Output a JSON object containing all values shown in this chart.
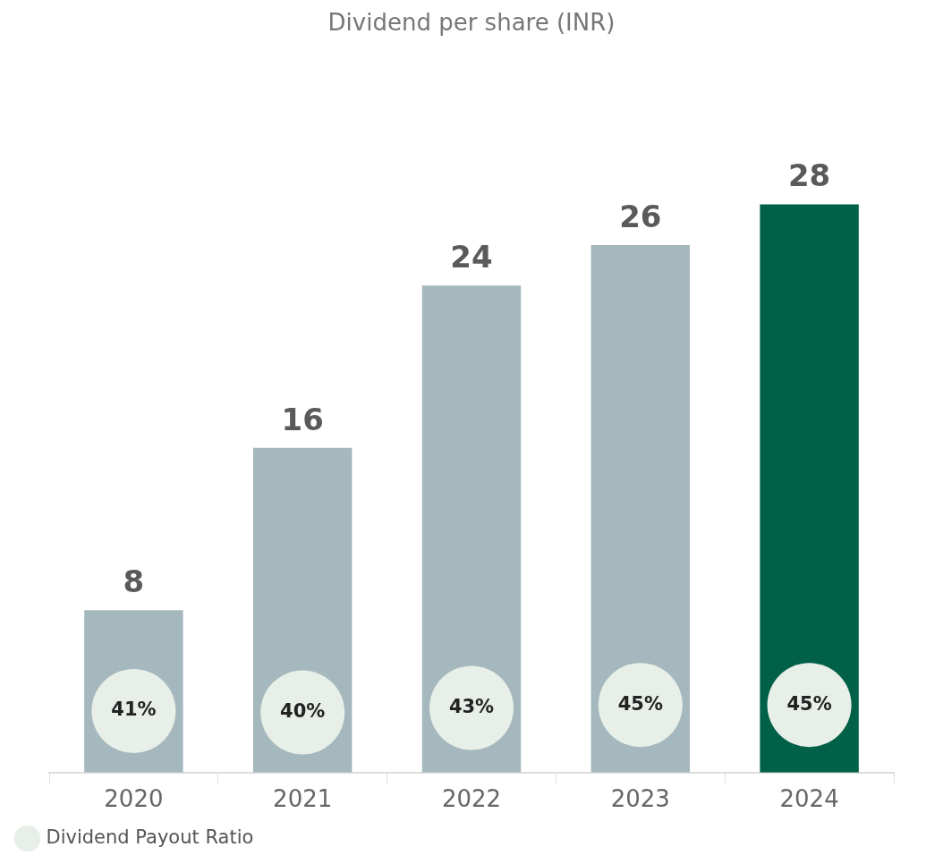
{
  "chart_data": {
    "type": "bar",
    "title": "Dividend per share (INR)",
    "categories": [
      "2020",
      "2021",
      "2022",
      "2023",
      "2024"
    ],
    "series": [
      {
        "colors": [
          "#a5b8bd",
          "#a5b8bd",
          "#a5b8bd",
          "#a5b8bd",
          "#006048"
        ],
        "values": [
          8,
          16,
          24,
          26,
          28
        ]
      },
      {
        "type": "scatter",
        "name": "Dividend Payout Ratio",
        "color": "#e8efe8",
        "axis": "y2",
        "values": [
          41,
          40,
          43,
          45,
          45
        ],
        "value_labels": [
          "41%",
          "40%",
          "43%",
          "45%",
          "45%"
        ]
      }
    ],
    "data_labels": true,
    "legend": "bottom left",
    "tick_labels": "x",
    "marker": "circle"
  }
}
